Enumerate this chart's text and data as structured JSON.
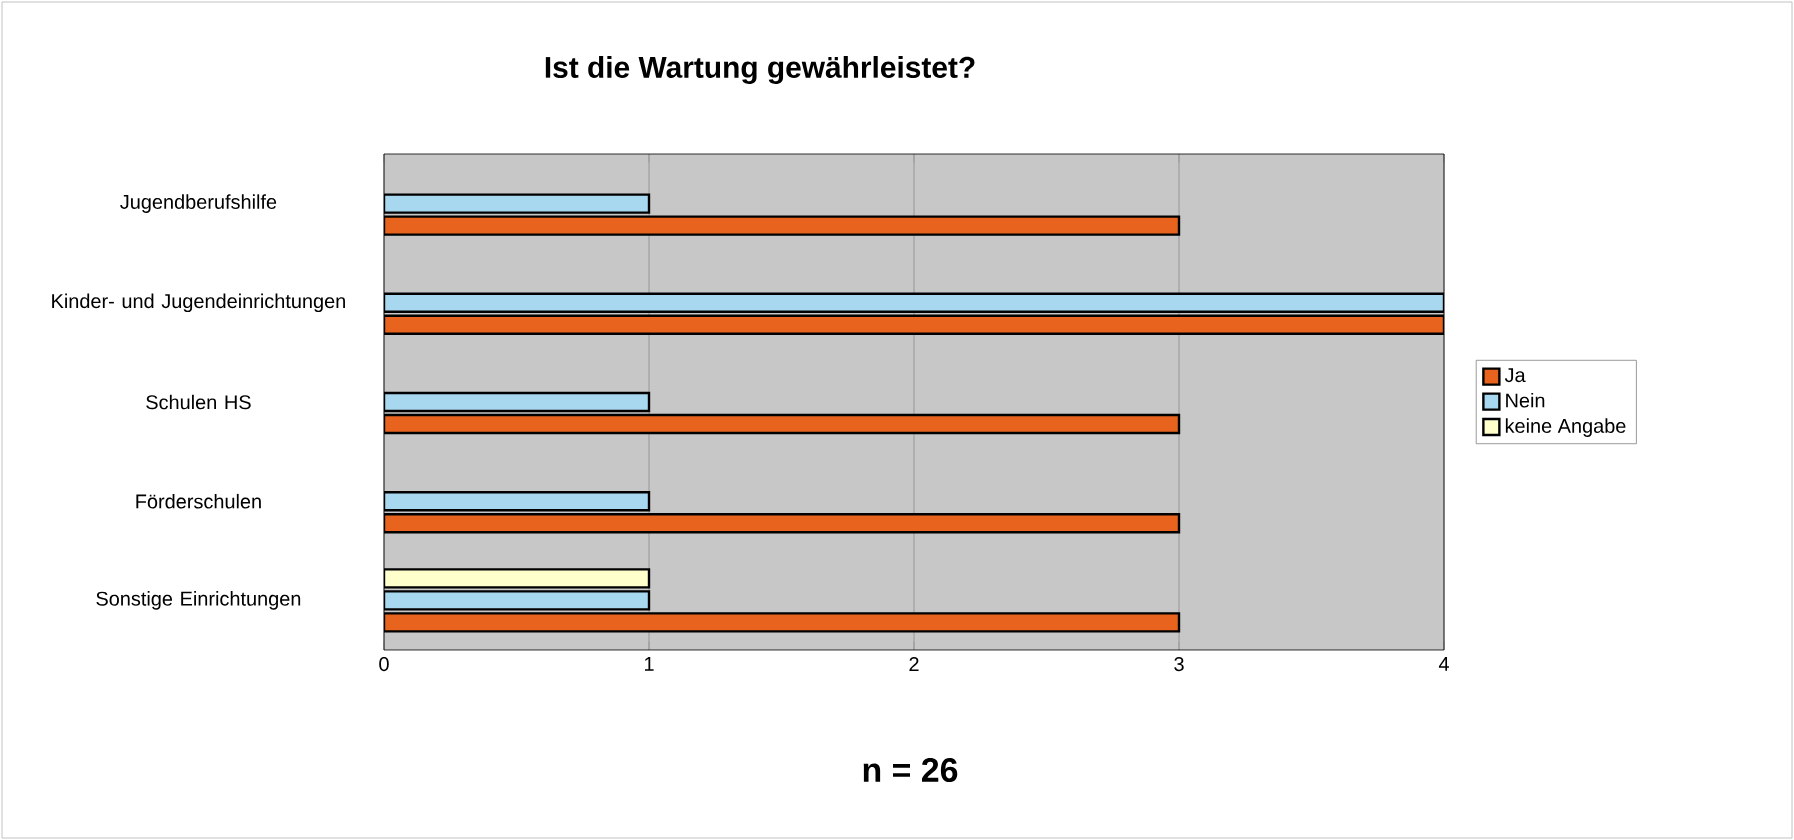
{
  "chart_data": {
    "type": "bar",
    "orientation": "horizontal",
    "title": "Ist die Wartung gewährleistet?",
    "categories": [
      "Jugendberufshilfe",
      "Kinder- und Jugendeinrichtungen",
      "Schulen HS",
      "Förderschulen",
      "Sonstige Einrichtungen"
    ],
    "series": [
      {
        "name": "Ja",
        "color": "#e8641e",
        "values": [
          3,
          4,
          3,
          3,
          3
        ]
      },
      {
        "name": "Nein",
        "color": "#a8d8f0",
        "values": [
          1,
          4,
          1,
          1,
          1
        ]
      },
      {
        "name": "keine Angabe",
        "color": "#ffffcc",
        "values": [
          null,
          null,
          null,
          null,
          1
        ]
      }
    ],
    "xlim": [
      0,
      4
    ],
    "xticks": [
      0,
      1,
      2,
      3,
      4
    ],
    "grid": "x",
    "legend": "right",
    "annotations": [
      "n = 26"
    ]
  }
}
